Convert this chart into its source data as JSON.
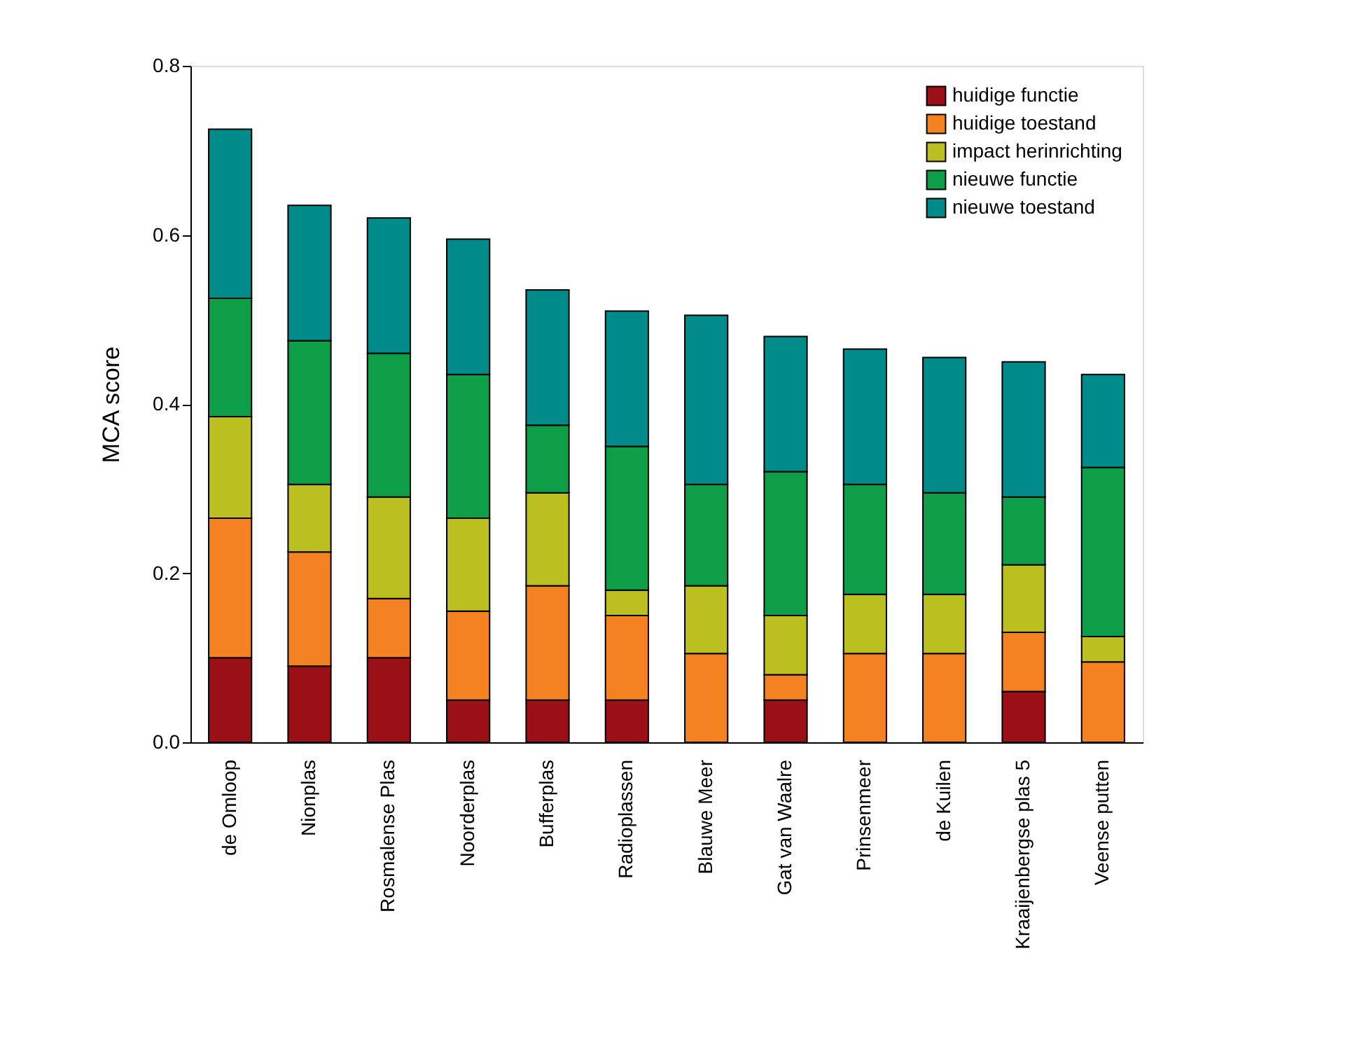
{
  "chart_data": {
    "type": "bar",
    "stacked": true,
    "ylabel": "MCA score",
    "ylim": [
      0,
      0.8
    ],
    "yticks": [
      {
        "value": 0,
        "label": "0.0"
      },
      {
        "value": 0.2,
        "label": "0.2"
      },
      {
        "value": 0.4,
        "label": "0.4"
      },
      {
        "value": 0.6,
        "label": "0.6"
      },
      {
        "value": 0.8,
        "label": "0.8"
      }
    ],
    "grid": false,
    "legend": "top right",
    "categories": [
      "de Omloop",
      "Nionplas",
      "Rosmalense Plas",
      "Noorderplas",
      "Bufferplas",
      "Radioplassen",
      "Blauwe Meer",
      "Gat van Waalre",
      "Prinsenmeer",
      "de Kuilen",
      "Kraaijenbergse plas 5",
      "Veense putten"
    ],
    "series": [
      {
        "name": "huidige functie",
        "color": "#9b0f17",
        "values": [
          0.1,
          0.09,
          0.1,
          0.05,
          0.05,
          0.05,
          0,
          0.05,
          0,
          0,
          0.06,
          0
        ]
      },
      {
        "name": "huidige toestand",
        "color": "#f58220",
        "values": [
          0.165,
          0.135,
          0.07,
          0.105,
          0.135,
          0.1,
          0.105,
          0.03,
          0.105,
          0.105,
          0.07,
          0.095
        ]
      },
      {
        "name": "impact herinrichting",
        "color": "#bcbf20",
        "values": [
          0.12,
          0.08,
          0.12,
          0.11,
          0.11,
          0.03,
          0.08,
          0.07,
          0.07,
          0.07,
          0.08,
          0.03
        ]
      },
      {
        "name": "nieuwe functie",
        "color": "#0f9e48",
        "values": [
          0.14,
          0.17,
          0.17,
          0.17,
          0.08,
          0.17,
          0.12,
          0.17,
          0.13,
          0.12,
          0.08,
          0.2
        ]
      },
      {
        "name": "nieuwe toestand",
        "color": "#008b8b",
        "values": [
          0.2,
          0.16,
          0.16,
          0.16,
          0.16,
          0.16,
          0.2,
          0.16,
          0.16,
          0.16,
          0.16,
          0.11
        ]
      }
    ]
  }
}
